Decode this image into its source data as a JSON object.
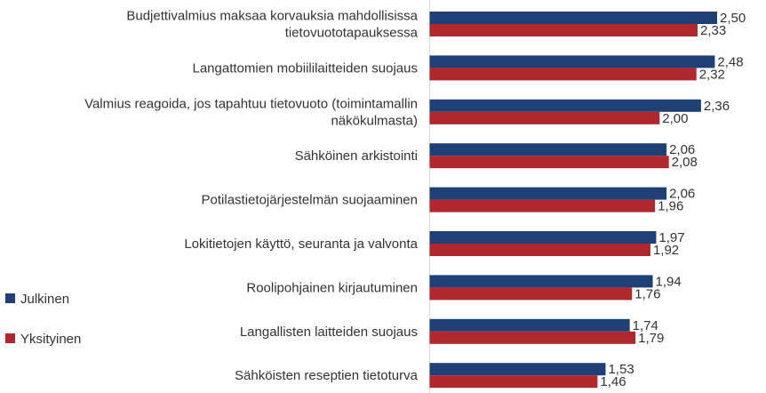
{
  "chart_data": {
    "type": "bar",
    "orientation": "horizontal",
    "categories": [
      [
        "Budjettivalmius maksaa korvauksia mahdollisissa",
        "tietovuototapauksessa"
      ],
      [
        "Langattomien mobiililaitteiden suojaus"
      ],
      [
        "Valmius reagoida, jos tapahtuu tietovuoto (toimintamallin",
        "näkökulmasta)"
      ],
      [
        "Sähköinen arkistointi"
      ],
      [
        "Potilastietojärjestelmän suojaaminen"
      ],
      [
        "Lokitietojen käyttö, seuranta ja valvonta"
      ],
      [
        "Roolipohjainen kirjautuminen"
      ],
      [
        "Langallisten laitteiden suojaus"
      ],
      [
        "Sähköisten reseptien tietoturva"
      ]
    ],
    "series": [
      {
        "name": "Julkinen",
        "color": "#1f3f77",
        "values": [
          2.5,
          2.48,
          2.36,
          2.06,
          2.06,
          1.97,
          1.94,
          1.74,
          1.53
        ],
        "labels": [
          "2,50",
          "2,48",
          "2,36",
          "2,06",
          "2,06",
          "1,97",
          "1,94",
          "1,74",
          "1,53"
        ]
      },
      {
        "name": "Yksityinen",
        "color": "#b0272d",
        "values": [
          2.33,
          2.32,
          2.0,
          2.08,
          1.96,
          1.92,
          1.76,
          1.79,
          1.46
        ],
        "labels": [
          "2,33",
          "2,32",
          "2,00",
          "2,08",
          "1,96",
          "1,92",
          "1,76",
          "1,79",
          "1,46"
        ]
      }
    ],
    "xlim": [
      0,
      2.5
    ],
    "grid": false,
    "legend_position": "left"
  }
}
